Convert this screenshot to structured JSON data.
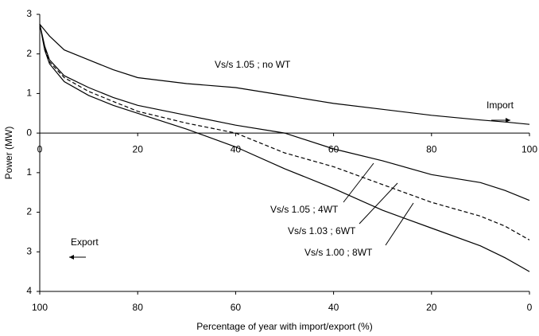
{
  "chart_data": {
    "type": "line",
    "y_label": "Power (MW)",
    "x_label": "Percentage of year with import/export (%)",
    "x": [
      0,
      1,
      2,
      5,
      10,
      15,
      20,
      30,
      40,
      50,
      60,
      70,
      80,
      90,
      95,
      100
    ],
    "xlim": [
      0,
      100
    ],
    "xticks": [
      0,
      20,
      40,
      60,
      80,
      100
    ],
    "x2lim": [
      100,
      0
    ],
    "x2ticks": [
      100,
      80,
      60,
      40,
      20,
      0
    ],
    "ylim": [
      -4,
      3
    ],
    "yticks": [
      {
        "value": 3,
        "label": "3"
      },
      {
        "value": 2,
        "label": "2"
      },
      {
        "value": 1,
        "label": "1"
      },
      {
        "value": 0,
        "label": "0"
      },
      {
        "value": -1,
        "label": "1"
      },
      {
        "value": -2,
        "label": "2"
      },
      {
        "value": -3,
        "label": "3"
      },
      {
        "value": -4,
        "label": "4"
      }
    ],
    "series": [
      {
        "name": "Vs/s 1.05 ; no WT",
        "color": "#000000",
        "dash": false,
        "values": [
          2.75,
          2.6,
          2.45,
          2.1,
          1.85,
          1.6,
          1.4,
          1.25,
          1.15,
          0.95,
          0.75,
          0.6,
          0.45,
          0.33,
          0.28,
          0.22
        ]
      },
      {
        "name": "Vs/s 1.05 ; 4WT",
        "color": "#000000",
        "dash": false,
        "values": [
          2.75,
          2.2,
          1.85,
          1.45,
          1.15,
          0.9,
          0.7,
          0.45,
          0.2,
          0.0,
          -0.4,
          -0.7,
          -1.05,
          -1.25,
          -1.45,
          -1.7
        ]
      },
      {
        "name": "Vs/s 1.03 ; 6WT",
        "color": "#000000",
        "dash": true,
        "values": [
          2.75,
          2.15,
          1.8,
          1.4,
          1.05,
          0.8,
          0.55,
          0.25,
          0.0,
          -0.5,
          -0.85,
          -1.3,
          -1.75,
          -2.1,
          -2.35,
          -2.7
        ]
      },
      {
        "name": "Vs/s 1.00 ; 8WT",
        "color": "#000000",
        "dash": false,
        "values": [
          2.75,
          2.1,
          1.75,
          1.3,
          0.95,
          0.7,
          0.5,
          0.1,
          -0.35,
          -0.9,
          -1.4,
          -1.95,
          -2.4,
          -2.85,
          -3.15,
          -3.5
        ]
      }
    ],
    "annotations": [
      "Import",
      "Export"
    ]
  }
}
